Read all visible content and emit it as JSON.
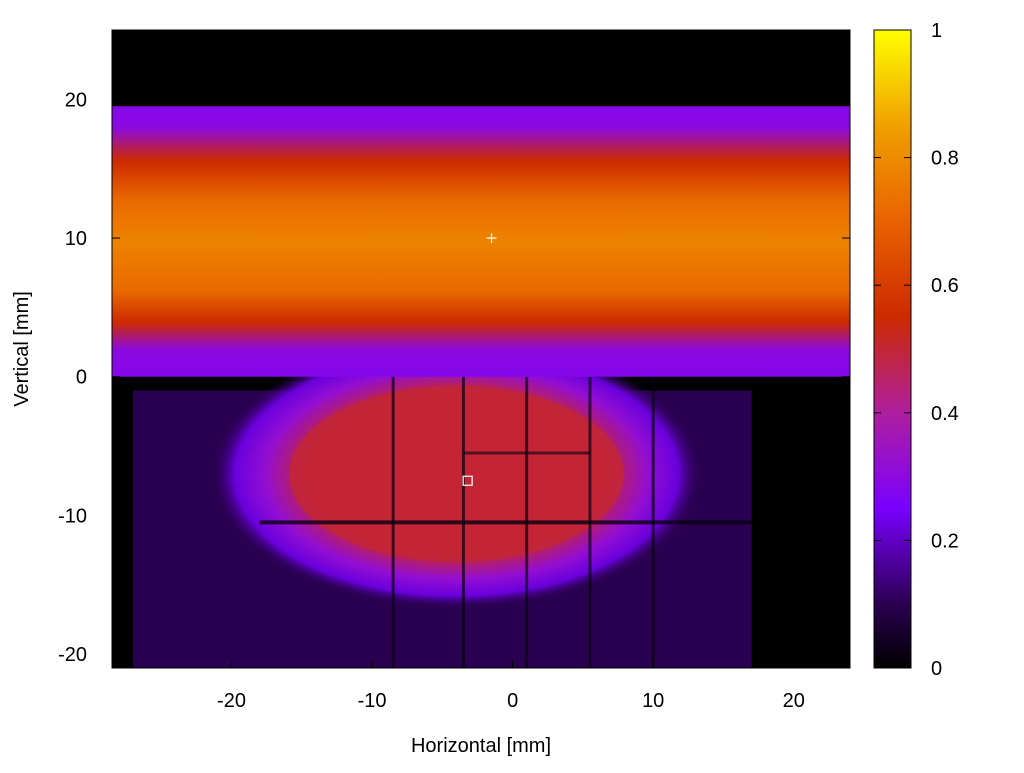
{
  "chart_data": {
    "type": "heatmap",
    "xlabel": "Horizontal [mm]",
    "ylabel": "Vertical [mm]",
    "xlim": [
      -28.5,
      24
    ],
    "ylim": [
      -21,
      25
    ],
    "x_ticks": [
      -20,
      -10,
      0,
      10,
      20
    ],
    "y_ticks": [
      -20,
      -10,
      0,
      10,
      20
    ],
    "colorbar": {
      "range": [
        0,
        1
      ],
      "ticks": [
        0,
        0.2,
        0.4,
        0.6,
        0.8,
        1
      ],
      "tick_labels": [
        "0",
        "0.2",
        "0.4",
        "0.6",
        "0.8",
        "1"
      ],
      "colormap": [
        {
          "value": 0.0,
          "color": "#000000"
        },
        {
          "value": 0.1,
          "color": "#2a0050"
        },
        {
          "value": 0.25,
          "color": "#7a00ff"
        },
        {
          "value": 0.4,
          "color": "#b01ea0"
        },
        {
          "value": 0.55,
          "color": "#cc2a00"
        },
        {
          "value": 0.7,
          "color": "#e96200"
        },
        {
          "value": 0.85,
          "color": "#f0a000"
        },
        {
          "value": 1.0,
          "color": "#ffff00"
        }
      ]
    },
    "regions": {
      "upper_band": {
        "y_range": [
          0,
          19.5
        ],
        "peak_value": 0.78,
        "peak_y": 10
      },
      "lower_ellipse": {
        "center": [
          -4,
          -7
        ],
        "semi_axes": [
          14,
          7.5
        ],
        "value": 0.5
      },
      "lower_field": {
        "x_range": [
          -27,
          17
        ],
        "y_range": [
          -21,
          -1
        ],
        "value": 0.1
      }
    },
    "markers": [
      {
        "symbol": "+",
        "x": -1.5,
        "y": 10,
        "color": "#ffffff"
      },
      {
        "symbol": "square",
        "x": -3.2,
        "y": -7.5,
        "color": "#ffffff"
      }
    ]
  }
}
